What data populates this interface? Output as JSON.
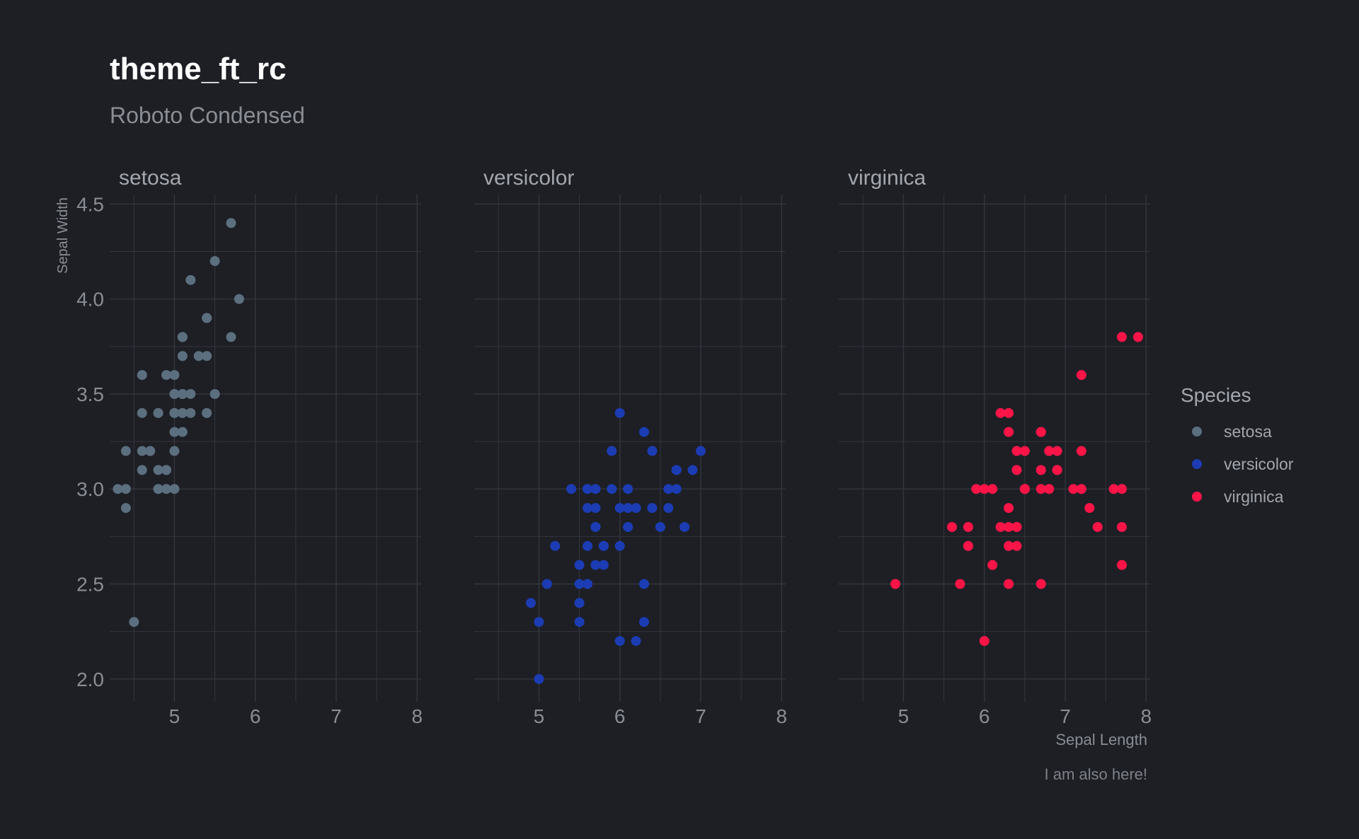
{
  "chart_data": {
    "type": "scatter",
    "title": "theme_ft_rc",
    "subtitle": "Roboto Condensed",
    "caption": "I am also here!",
    "xlabel": "Sepal Length",
    "ylabel": "Sepal Width",
    "xlim": [
      4.2,
      8.05
    ],
    "ylim": [
      1.88,
      4.55
    ],
    "xticks": [
      5,
      6,
      7,
      8
    ],
    "xtick_labels": [
      "5",
      "6",
      "7",
      "8"
    ],
    "yticks": [
      2.0,
      2.5,
      3.0,
      3.5,
      4.0,
      4.5
    ],
    "ytick_labels": [
      "2.0",
      "2.5",
      "3.0",
      "3.5",
      "4.0",
      "4.5"
    ],
    "grid": true,
    "legend": {
      "title": "Species",
      "position": "right"
    },
    "colors": {
      "background": "#1d1f25",
      "grid": "#34363d",
      "setosa": "#5b6f7f",
      "versicolor": "#1c3cb4",
      "virginica": "#ff1447"
    },
    "facets": [
      {
        "name": "setosa",
        "points": [
          [
            5.1,
            3.5
          ],
          [
            4.9,
            3.0
          ],
          [
            4.7,
            3.2
          ],
          [
            4.6,
            3.1
          ],
          [
            5.0,
            3.6
          ],
          [
            5.4,
            3.9
          ],
          [
            4.6,
            3.4
          ],
          [
            5.0,
            3.4
          ],
          [
            4.4,
            2.9
          ],
          [
            4.9,
            3.1
          ],
          [
            5.4,
            3.7
          ],
          [
            4.8,
            3.4
          ],
          [
            4.8,
            3.0
          ],
          [
            4.3,
            3.0
          ],
          [
            5.8,
            4.0
          ],
          [
            5.7,
            4.4
          ],
          [
            5.4,
            3.9
          ],
          [
            5.1,
            3.5
          ],
          [
            5.7,
            3.8
          ],
          [
            5.1,
            3.8
          ],
          [
            5.4,
            3.4
          ],
          [
            5.1,
            3.7
          ],
          [
            4.6,
            3.6
          ],
          [
            5.1,
            3.3
          ],
          [
            4.8,
            3.4
          ],
          [
            5.0,
            3.0
          ],
          [
            5.0,
            3.4
          ],
          [
            5.2,
            3.5
          ],
          [
            5.2,
            3.4
          ],
          [
            4.7,
            3.2
          ],
          [
            4.8,
            3.1
          ],
          [
            5.4,
            3.4
          ],
          [
            5.2,
            4.1
          ],
          [
            5.5,
            4.2
          ],
          [
            4.9,
            3.1
          ],
          [
            5.0,
            3.2
          ],
          [
            5.5,
            3.5
          ],
          [
            4.9,
            3.6
          ],
          [
            4.4,
            3.0
          ],
          [
            5.1,
            3.4
          ],
          [
            5.0,
            3.5
          ],
          [
            4.5,
            2.3
          ],
          [
            4.4,
            3.2
          ],
          [
            5.0,
            3.5
          ],
          [
            5.1,
            3.8
          ],
          [
            4.8,
            3.0
          ],
          [
            5.1,
            3.8
          ],
          [
            4.6,
            3.2
          ],
          [
            5.3,
            3.7
          ],
          [
            5.0,
            3.3
          ]
        ]
      },
      {
        "name": "versicolor",
        "points": [
          [
            7.0,
            3.2
          ],
          [
            6.4,
            3.2
          ],
          [
            6.9,
            3.1
          ],
          [
            5.5,
            2.3
          ],
          [
            6.5,
            2.8
          ],
          [
            5.7,
            2.8
          ],
          [
            6.3,
            3.3
          ],
          [
            4.9,
            2.4
          ],
          [
            6.6,
            2.9
          ],
          [
            5.2,
            2.7
          ],
          [
            5.0,
            2.0
          ],
          [
            5.9,
            3.0
          ],
          [
            6.0,
            2.2
          ],
          [
            6.1,
            2.9
          ],
          [
            5.6,
            2.9
          ],
          [
            6.7,
            3.1
          ],
          [
            5.6,
            3.0
          ],
          [
            5.8,
            2.7
          ],
          [
            6.2,
            2.2
          ],
          [
            5.6,
            2.5
          ],
          [
            5.9,
            3.2
          ],
          [
            6.1,
            2.8
          ],
          [
            6.3,
            2.5
          ],
          [
            6.1,
            2.8
          ],
          [
            6.4,
            2.9
          ],
          [
            6.6,
            3.0
          ],
          [
            6.8,
            2.8
          ],
          [
            6.7,
            3.0
          ],
          [
            6.0,
            2.9
          ],
          [
            5.7,
            2.6
          ],
          [
            5.5,
            2.4
          ],
          [
            5.5,
            2.4
          ],
          [
            5.8,
            2.7
          ],
          [
            6.0,
            2.7
          ],
          [
            5.4,
            3.0
          ],
          [
            6.0,
            3.4
          ],
          [
            6.7,
            3.1
          ],
          [
            6.3,
            2.3
          ],
          [
            5.6,
            3.0
          ],
          [
            5.5,
            2.5
          ],
          [
            5.5,
            2.6
          ],
          [
            6.1,
            3.0
          ],
          [
            5.8,
            2.6
          ],
          [
            5.0,
            2.3
          ],
          [
            5.6,
            2.7
          ],
          [
            5.7,
            3.0
          ],
          [
            5.7,
            2.9
          ],
          [
            6.2,
            2.9
          ],
          [
            5.1,
            2.5
          ],
          [
            5.7,
            2.8
          ]
        ]
      },
      {
        "name": "virginica",
        "points": [
          [
            6.3,
            3.3
          ],
          [
            5.8,
            2.7
          ],
          [
            7.1,
            3.0
          ],
          [
            6.3,
            2.9
          ],
          [
            6.5,
            3.0
          ],
          [
            7.6,
            3.0
          ],
          [
            4.9,
            2.5
          ],
          [
            7.3,
            2.9
          ],
          [
            6.7,
            2.5
          ],
          [
            7.2,
            3.6
          ],
          [
            6.5,
            3.2
          ],
          [
            6.4,
            2.7
          ],
          [
            6.8,
            3.0
          ],
          [
            5.7,
            2.5
          ],
          [
            5.8,
            2.8
          ],
          [
            6.4,
            3.2
          ],
          [
            6.5,
            3.0
          ],
          [
            7.7,
            3.8
          ],
          [
            7.7,
            2.6
          ],
          [
            6.0,
            2.2
          ],
          [
            6.9,
            3.2
          ],
          [
            5.6,
            2.8
          ],
          [
            7.7,
            2.8
          ],
          [
            6.3,
            2.7
          ],
          [
            6.7,
            3.3
          ],
          [
            7.2,
            3.2
          ],
          [
            6.2,
            2.8
          ],
          [
            6.1,
            3.0
          ],
          [
            6.4,
            2.8
          ],
          [
            7.2,
            3.0
          ],
          [
            7.4,
            2.8
          ],
          [
            7.9,
            3.8
          ],
          [
            6.4,
            2.8
          ],
          [
            6.3,
            2.8
          ],
          [
            6.1,
            2.6
          ],
          [
            7.7,
            3.0
          ],
          [
            6.3,
            3.4
          ],
          [
            6.4,
            3.1
          ],
          [
            6.0,
            3.0
          ],
          [
            6.9,
            3.1
          ],
          [
            6.7,
            3.1
          ],
          [
            6.9,
            3.1
          ],
          [
            5.8,
            2.7
          ],
          [
            6.8,
            3.2
          ],
          [
            6.7,
            3.3
          ],
          [
            6.7,
            3.0
          ],
          [
            6.3,
            2.5
          ],
          [
            6.5,
            3.0
          ],
          [
            6.2,
            3.4
          ],
          [
            5.9,
            3.0
          ]
        ]
      }
    ]
  }
}
